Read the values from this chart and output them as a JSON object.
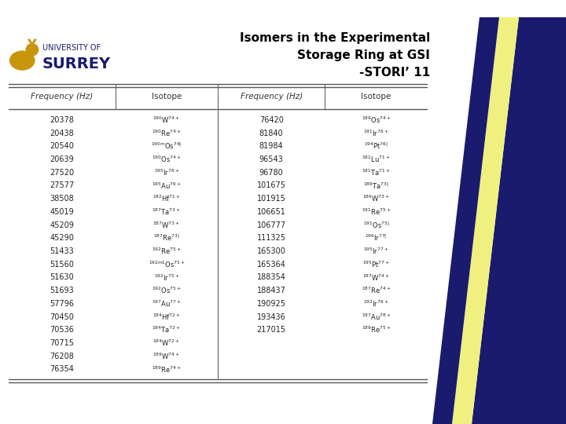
{
  "title": "Isomers in the Experimental\nStorage Ring at GSI\n-STORI’ 11",
  "bg_color": "#ffffff",
  "navy": "#1a1a6e",
  "yellow": "#f0f080",
  "col1_freq": [
    "20378",
    "20438",
    "20540",
    "20639",
    "27520",
    "27577",
    "38508",
    "45019",
    "45209",
    "45290",
    "51433",
    "51560",
    "51630",
    "51693",
    "57796",
    "70450",
    "70536",
    "70715",
    "76208",
    "76354"
  ],
  "col1_iso": [
    "$^{190}$W$^{74+}$",
    "$^{190}$Re$^{74+}$",
    "$^{190m}$Os$^{74|}$",
    "$^{190}$Os$^{74+}$",
    "$^{195}$Ir$^{76+}$",
    "$^{195}$Au$^{76+}$",
    "$^{182}$Hf$^{71+}$",
    "$^{187}$Ta$^{73+}$",
    "$^{187}$W$^{73+}$",
    "$^{187}$Re$^{73|}$",
    "$^{192}$Re$^{75+}$",
    "$^{192m1}$Os$^{75+}$",
    "$^{192}$Ir$^{75+}$",
    "$^{192}$Os$^{75+}$",
    "$^{197}$Au$^{77+}$",
    "$^{184}$Hf$^{72+}$",
    "$^{184}$Ta$^{72+}$",
    "$^{184}$W$^{72+}$",
    "$^{189}$W$^{74+}$",
    "$^{189}$Re$^{74+}$"
  ],
  "col2_freq": [
    "76420",
    "81840",
    "81984",
    "96543",
    "96780",
    "101675",
    "101915",
    "106651",
    "106777",
    "111325",
    "165300",
    "165364",
    "188354",
    "188437",
    "190925",
    "193436",
    "217015"
  ],
  "col2_iso": [
    "$^{189}$Os$^{74+}$",
    "$^{191}$Ir$^{76+}$",
    "$^{194}$Pt$^{76|}$",
    "$^{181}$Lu$^{71+}$",
    "$^{181}$Ta$^{71+}$",
    "$^{186}$Ta$^{73|}$",
    "$^{186}$W$^{73+}$",
    "$^{191}$Re$^{75+}$",
    "$^{191}$Os$^{75|}$",
    "$^{196}$Ir$^{77|}$",
    "$^{195}$Ir$^{77+}$",
    "$^{195}$Pt$^{77+}$",
    "$^{187}$W$^{74+}$",
    "$^{187}$Re$^{74+}$",
    "$^{192}$Ir$^{76+}$",
    "$^{197}$Au$^{78+}$",
    "$^{189}$Re$^{75+}$"
  ],
  "header_labels": [
    "Frequency (Hz)",
    "Isotope",
    "Frequency (Hz)",
    "Isotope"
  ],
  "surrey_text1": "UNIVERSITY OF",
  "surrey_text2": "SURREY"
}
